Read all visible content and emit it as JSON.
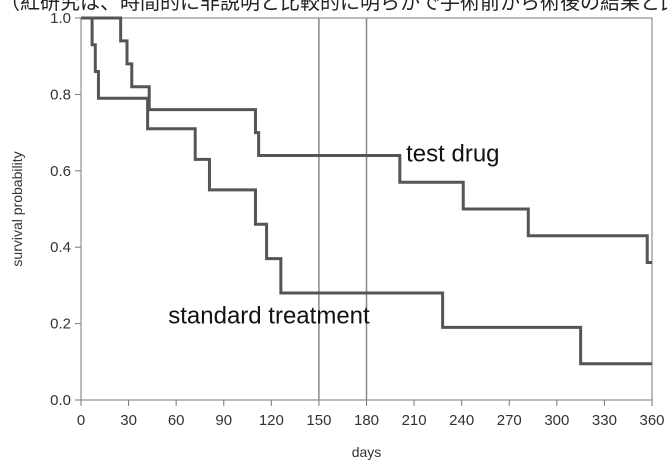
{
  "top_text": "（紅研究は、時間的に非説明と比較的に明らかで手術前から術後の結果と比較した場合にいく。",
  "chart_data": {
    "type": "line",
    "step": true,
    "xlabel": "days",
    "ylabel": "survival probability",
    "xlim": [
      0,
      360
    ],
    "ylim": [
      0,
      1
    ],
    "x_ticks": [
      0,
      30,
      60,
      90,
      120,
      150,
      180,
      210,
      240,
      270,
      300,
      330,
      360
    ],
    "y_ticks": [
      0.0,
      0.2,
      0.4,
      0.6,
      0.8,
      1.0
    ],
    "y_tick_labels": [
      "0.0",
      "0.2",
      "0.4",
      "0.6",
      "0.8",
      "1.0"
    ],
    "reference_lines_x": [
      150,
      180
    ],
    "series": [
      {
        "name": "test drug",
        "color": "#555555",
        "points": [
          [
            0,
            1.0
          ],
          [
            25,
            1.0
          ],
          [
            25,
            0.94
          ],
          [
            29,
            0.94
          ],
          [
            29,
            0.88
          ],
          [
            32,
            0.88
          ],
          [
            32,
            0.82
          ],
          [
            43,
            0.82
          ],
          [
            43,
            0.76
          ],
          [
            110,
            0.76
          ],
          [
            110,
            0.7
          ],
          [
            112,
            0.7
          ],
          [
            112,
            0.64
          ],
          [
            201,
            0.64
          ],
          [
            201,
            0.57
          ],
          [
            241,
            0.57
          ],
          [
            241,
            0.5
          ],
          [
            282,
            0.5
          ],
          [
            282,
            0.43
          ],
          [
            357,
            0.43
          ],
          [
            357,
            0.36
          ],
          [
            360,
            0.36
          ]
        ]
      },
      {
        "name": "standard treatment",
        "color": "#555555",
        "points": [
          [
            0,
            1.0
          ],
          [
            7,
            1.0
          ],
          [
            7,
            0.93
          ],
          [
            9,
            0.93
          ],
          [
            9,
            0.86
          ],
          [
            11,
            0.86
          ],
          [
            11,
            0.79
          ],
          [
            42,
            0.79
          ],
          [
            42,
            0.71
          ],
          [
            72,
            0.71
          ],
          [
            72,
            0.63
          ],
          [
            81,
            0.63
          ],
          [
            81,
            0.55
          ],
          [
            110,
            0.55
          ],
          [
            110,
            0.46
          ],
          [
            117,
            0.46
          ],
          [
            117,
            0.37
          ],
          [
            126,
            0.37
          ],
          [
            126,
            0.28
          ],
          [
            228,
            0.28
          ],
          [
            228,
            0.19
          ],
          [
            315,
            0.19
          ],
          [
            315,
            0.095
          ],
          [
            360,
            0.095
          ]
        ]
      }
    ],
    "annotations": [
      {
        "text": "test drug",
        "x": 205,
        "y": 0.625
      },
      {
        "text": "standard treatment",
        "x": 55,
        "y": 0.2
      }
    ]
  }
}
